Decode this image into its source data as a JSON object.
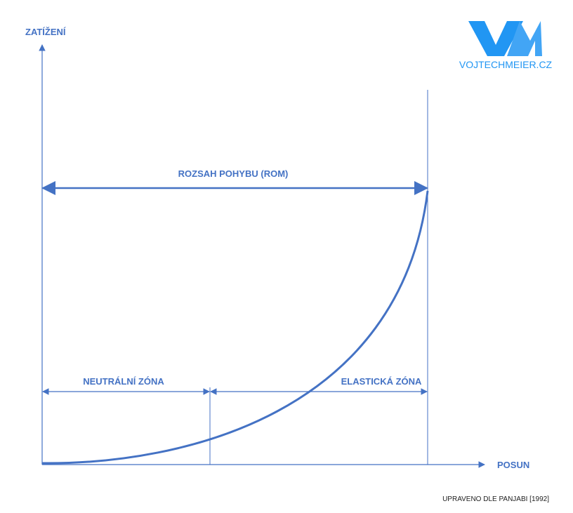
{
  "axes": {
    "y_label": "ZATÍŽENÍ",
    "x_label": "POSUN"
  },
  "annotations": {
    "rom": "ROZSAH POHYBU (ROM)",
    "neutral_zone": "NEUTRÁLNÍ ZÓNA",
    "elastic_zone": "ELASTICKÁ ZÓNA"
  },
  "logo": {
    "mark": "VM",
    "text": "VOJTECHMEIER.CZ"
  },
  "source": "UPRAVENO DLE PANJABI [1992]"
}
